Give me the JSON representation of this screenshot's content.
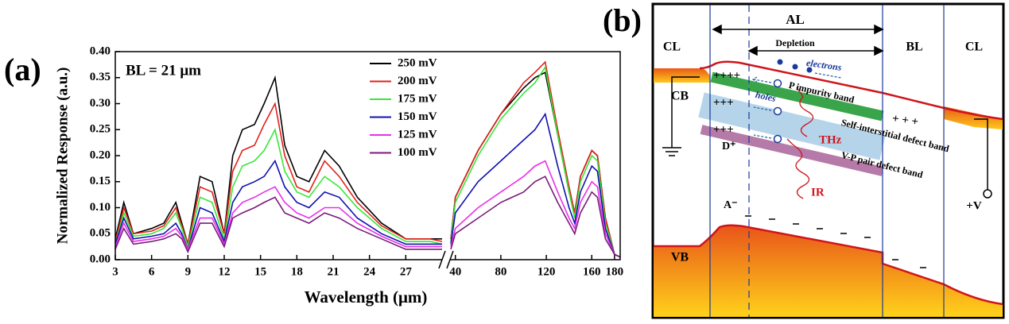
{
  "chart_data": {
    "type": "line",
    "panel_label": "(a)",
    "annotation": "BL = 21 μm",
    "xlabel": "Wavelength (μm)",
    "ylabel": "Normalized Response (a.u.)",
    "x": [
      3,
      3.7,
      4.5,
      6,
      7,
      8,
      8.5,
      9,
      10,
      11,
      12,
      12.7,
      13.5,
      14.5,
      15.3,
      16.2,
      17,
      18,
      19,
      20.3,
      21.5,
      23,
      25,
      27,
      29,
      30,
      36,
      40,
      60,
      80,
      100,
      110,
      119,
      130,
      140,
      145,
      150,
      160,
      165,
      172,
      180,
      185
    ],
    "xlim": [
      3,
      185
    ],
    "xbreak": [
      30,
      36
    ],
    "xticks": [
      3,
      6,
      9,
      12,
      15,
      18,
      21,
      24,
      27,
      40,
      80,
      120,
      160,
      180
    ],
    "ylim": [
      0,
      0.4
    ],
    "yticks": [
      {
        "value": 0,
        "label": "0.00"
      },
      {
        "value": 0.05,
        "label": "0.05"
      },
      {
        "value": 0.1,
        "label": "0.10"
      },
      {
        "value": 0.15,
        "label": "0.15"
      },
      {
        "value": 0.2,
        "label": "0.20"
      },
      {
        "value": 0.25,
        "label": "0.25"
      },
      {
        "value": 0.3,
        "label": "0.30"
      },
      {
        "value": 0.35,
        "label": "0.35"
      },
      {
        "value": 0.4,
        "label": "0.40"
      }
    ],
    "series": [
      {
        "name": "250 mV",
        "color": "#000000",
        "values": [
          0.04,
          0.11,
          0.05,
          0.06,
          0.07,
          0.11,
          0.07,
          0.03,
          0.16,
          0.15,
          0.05,
          0.2,
          0.25,
          0.26,
          0.3,
          0.35,
          0.22,
          0.16,
          0.15,
          0.21,
          0.18,
          0.12,
          0.07,
          0.04,
          0.04,
          0.04,
          0.04,
          0.12,
          0.21,
          0.28,
          0.33,
          0.35,
          0.36,
          0.24,
          0.13,
          0.09,
          0.16,
          0.21,
          0.2,
          0.08,
          0.01,
          0.005
        ]
      },
      {
        "name": "200 mV",
        "color": "#e0201b",
        "values": [
          0.035,
          0.1,
          0.05,
          0.055,
          0.065,
          0.1,
          0.065,
          0.03,
          0.14,
          0.13,
          0.05,
          0.17,
          0.21,
          0.22,
          0.26,
          0.3,
          0.2,
          0.14,
          0.13,
          0.19,
          0.16,
          0.11,
          0.065,
          0.04,
          0.04,
          0.035,
          0.04,
          0.12,
          0.21,
          0.28,
          0.34,
          0.36,
          0.38,
          0.25,
          0.14,
          0.09,
          0.16,
          0.21,
          0.2,
          0.08,
          0.01,
          0.005
        ]
      },
      {
        "name": "175 mV",
        "color": "#39e639",
        "values": [
          0.03,
          0.09,
          0.045,
          0.05,
          0.06,
          0.09,
          0.06,
          0.025,
          0.12,
          0.11,
          0.04,
          0.14,
          0.18,
          0.19,
          0.21,
          0.25,
          0.17,
          0.13,
          0.12,
          0.16,
          0.14,
          0.1,
          0.06,
          0.035,
          0.035,
          0.03,
          0.035,
          0.11,
          0.2,
          0.27,
          0.32,
          0.34,
          0.37,
          0.24,
          0.13,
          0.08,
          0.15,
          0.2,
          0.19,
          0.07,
          0.01,
          0.005
        ]
      },
      {
        "name": "150 mV",
        "color": "#1010b0",
        "values": [
          0.03,
          0.08,
          0.04,
          0.045,
          0.05,
          0.07,
          0.05,
          0.02,
          0.1,
          0.09,
          0.035,
          0.11,
          0.14,
          0.15,
          0.16,
          0.19,
          0.14,
          0.11,
          0.1,
          0.13,
          0.12,
          0.08,
          0.05,
          0.03,
          0.03,
          0.03,
          0.03,
          0.09,
          0.15,
          0.19,
          0.23,
          0.25,
          0.28,
          0.18,
          0.1,
          0.07,
          0.13,
          0.18,
          0.17,
          0.06,
          0.01,
          0.005
        ]
      },
      {
        "name": "125 mV",
        "color": "#e830e8",
        "values": [
          0.025,
          0.07,
          0.035,
          0.04,
          0.045,
          0.06,
          0.045,
          0.02,
          0.08,
          0.08,
          0.03,
          0.09,
          0.11,
          0.12,
          0.13,
          0.14,
          0.11,
          0.09,
          0.08,
          0.1,
          0.1,
          0.07,
          0.045,
          0.025,
          0.025,
          0.025,
          0.025,
          0.06,
          0.1,
          0.13,
          0.16,
          0.18,
          0.19,
          0.13,
          0.08,
          0.06,
          0.11,
          0.15,
          0.14,
          0.05,
          0.01,
          0.005
        ]
      },
      {
        "name": "100 mV",
        "color": "#7a1a7a",
        "values": [
          0.02,
          0.06,
          0.03,
          0.035,
          0.04,
          0.05,
          0.04,
          0.015,
          0.07,
          0.07,
          0.025,
          0.08,
          0.09,
          0.1,
          0.11,
          0.12,
          0.09,
          0.08,
          0.07,
          0.09,
          0.08,
          0.06,
          0.04,
          0.02,
          0.02,
          0.02,
          0.02,
          0.05,
          0.08,
          0.11,
          0.13,
          0.15,
          0.16,
          0.11,
          0.07,
          0.05,
          0.09,
          0.13,
          0.12,
          0.04,
          0.01,
          0.005
        ]
      }
    ]
  },
  "diagram": {
    "panel_label": "(b)",
    "labels": {
      "al": "AL",
      "depletion": "Depletion",
      "cl_left": "CL",
      "bl": "BL",
      "cl_right": "CL",
      "cb": "CB",
      "vb": "VB",
      "electrons": "electrons",
      "holes": "holes",
      "p_band": "P impurity band",
      "si_band": "Self-interstitial defect band",
      "vp_band": "V-P pair defect band",
      "thz": "THz",
      "ir": "IR",
      "d_plus": "D⁺",
      "a_minus": "A⁻",
      "bias": "+V",
      "plus1": "++++",
      "plus2": "+++",
      "plus3": "+++",
      "plus_bl": "+   +   +"
    }
  }
}
